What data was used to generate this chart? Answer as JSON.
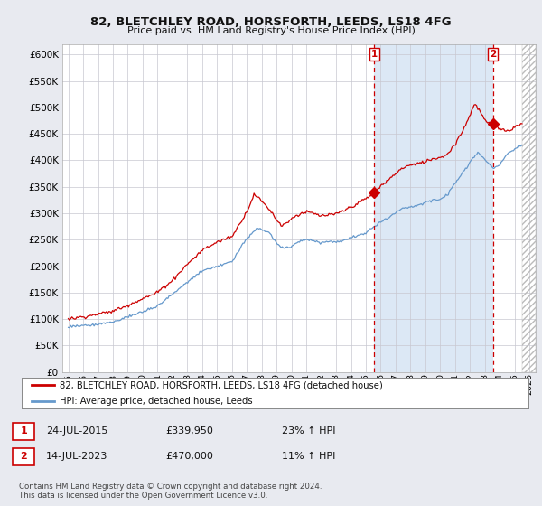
{
  "title": "82, BLETCHLEY ROAD, HORSFORTH, LEEDS, LS18 4FG",
  "subtitle": "Price paid vs. HM Land Registry's House Price Index (HPI)",
  "legend_label_red": "82, BLETCHLEY ROAD, HORSFORTH, LEEDS, LS18 4FG (detached house)",
  "legend_label_blue": "HPI: Average price, detached house, Leeds",
  "transaction1_date": "24-JUL-2015",
  "transaction1_price": "£339,950",
  "transaction1_pct": "23% ↑ HPI",
  "transaction2_date": "14-JUL-2023",
  "transaction2_price": "£470,000",
  "transaction2_pct": "11% ↑ HPI",
  "footer": "Contains HM Land Registry data © Crown copyright and database right 2024.\nThis data is licensed under the Open Government Licence v3.0.",
  "ylim": [
    0,
    620000
  ],
  "yticks": [
    0,
    50000,
    100000,
    150000,
    200000,
    250000,
    300000,
    350000,
    400000,
    450000,
    500000,
    550000,
    600000
  ],
  "red_color": "#cc0000",
  "blue_color": "#6699cc",
  "background_color": "#e8eaf0",
  "plot_bg_color": "#ffffff",
  "shade_color": "#dce8f5",
  "grid_color": "#c8c8d0",
  "transaction1_x": 2015.55,
  "transaction1_y": 339950,
  "transaction2_x": 2023.53,
  "transaction2_y": 470000,
  "xlim_left": 1994.6,
  "xlim_right": 2026.4,
  "hatch_start": 2025.5
}
